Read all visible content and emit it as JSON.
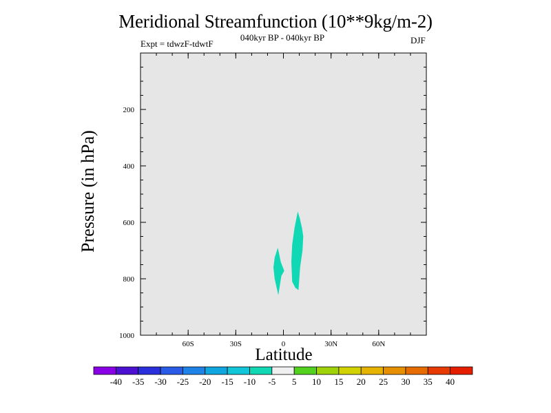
{
  "header": {
    "title": "Meridional Streamfunction (10**9kg/m-2)",
    "subtitle": "040kyr BP - 040kyr BP",
    "experiment": "Expt = tdwzF-tdwtF",
    "season": "DJF"
  },
  "chart_data": {
    "type": "contour",
    "title": "Meridional Streamfunction (10**9kg/m-2)",
    "subtitle": "040kyr BP - 040kyr BP",
    "xlabel": "Latitude",
    "ylabel": "Pressure (in hPa)",
    "xlim": [
      -90,
      90
    ],
    "ylim": [
      1000,
      0
    ],
    "x_ticks": [
      {
        "value": -60,
        "label": "60S"
      },
      {
        "value": -30,
        "label": "30S"
      },
      {
        "value": 0,
        "label": "0"
      },
      {
        "value": 30,
        "label": "30N"
      },
      {
        "value": 60,
        "label": "60N"
      }
    ],
    "y_ticks": [
      {
        "value": 200,
        "label": "200"
      },
      {
        "value": 400,
        "label": "400"
      },
      {
        "value": 600,
        "label": "600"
      },
      {
        "value": 800,
        "label": "800"
      },
      {
        "value": 1000,
        "label": "1000"
      }
    ],
    "background_color": "#e6e6e6",
    "filled_regions": [
      {
        "level_range": [
          -10,
          -5
        ],
        "color": "#10d7b4",
        "points": [
          [
            -3.5,
            690
          ],
          [
            -1.7,
            740
          ],
          [
            0.5,
            772
          ],
          [
            -1.3,
            790
          ],
          [
            -3.2,
            858
          ],
          [
            -5.5,
            800
          ],
          [
            -6.3,
            760
          ],
          [
            -5.5,
            725
          ]
        ]
      },
      {
        "level_range": [
          -10,
          -5
        ],
        "color": "#10d7b4",
        "points": [
          [
            9.0,
            562
          ],
          [
            10.3,
            585
          ],
          [
            11.7,
            620
          ],
          [
            12.5,
            650
          ],
          [
            12.0,
            700
          ],
          [
            10.5,
            760
          ],
          [
            9.5,
            840
          ],
          [
            7.5,
            832
          ],
          [
            5.5,
            810
          ],
          [
            5.0,
            740
          ],
          [
            5.5,
            680
          ],
          [
            7.0,
            620
          ]
        ]
      }
    ],
    "colorbar": {
      "labels": [
        "-40",
        "-35",
        "-30",
        "-25",
        "-20",
        "-15",
        "-10",
        "-5",
        "5",
        "10",
        "15",
        "20",
        "25",
        "30",
        "35",
        "40"
      ],
      "colors": [
        "#8a00e6",
        "#4b10d2",
        "#2a2fdc",
        "#2a5be6",
        "#1e82e6",
        "#10a6e0",
        "#10c6d8",
        "#10d7b4",
        "#f0f0f0",
        "#52d21e",
        "#a0d20a",
        "#d2d200",
        "#e6b400",
        "#e69000",
        "#e66c00",
        "#e63a00",
        "#e61e00"
      ]
    }
  }
}
